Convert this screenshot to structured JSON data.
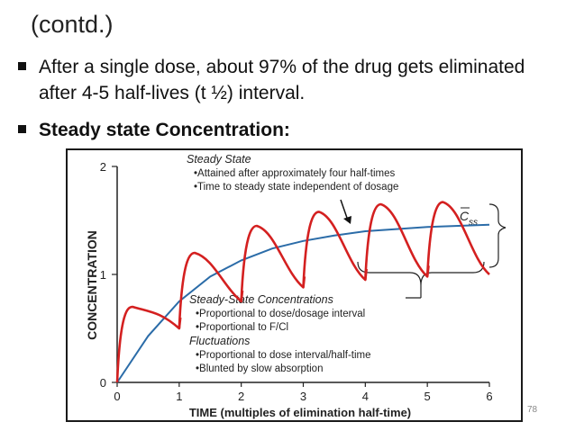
{
  "slide": {
    "heading": "(contd.)",
    "bullets": [
      {
        "text": "After a single dose, about 97% of the drug gets eliminated after 4-5 half-lives (t ½) interval.",
        "bold": false
      },
      {
        "text": "Steady state Concentration:",
        "bold": true
      }
    ],
    "page_number": "78"
  },
  "chart_data": {
    "type": "line",
    "xlabel": "TIME (multiples of elimination half-time)",
    "ylabel": "CONCENTRATION",
    "x_ticks": [
      "0",
      "1",
      "2",
      "3",
      "4",
      "5",
      "6"
    ],
    "y_ticks": [
      "0",
      "1",
      "2"
    ],
    "xlim": [
      0,
      6
    ],
    "ylim": [
      0,
      2
    ],
    "grid": false,
    "series": [
      {
        "color": "#d42020",
        "dose_interval": 1,
        "description_points": [
          {
            "x": 0.0,
            "y": 0.0
          },
          {
            "x": 0.25,
            "y": 0.7
          },
          {
            "x": 1.0,
            "y": 0.5
          },
          {
            "x": 1.25,
            "y": 1.2
          },
          {
            "x": 2.0,
            "y": 0.75
          },
          {
            "x": 2.25,
            "y": 1.45
          },
          {
            "x": 3.0,
            "y": 0.88
          },
          {
            "x": 3.25,
            "y": 1.58
          },
          {
            "x": 4.0,
            "y": 0.95
          },
          {
            "x": 4.25,
            "y": 1.65
          },
          {
            "x": 5.0,
            "y": 0.98
          },
          {
            "x": 5.25,
            "y": 1.67
          },
          {
            "x": 6.0,
            "y": 1.0
          }
        ]
      },
      {
        "color": "#2b6ca8",
        "points": [
          {
            "x": 0,
            "y": 0
          },
          {
            "x": 0.5,
            "y": 0.43
          },
          {
            "x": 1,
            "y": 0.75
          },
          {
            "x": 1.5,
            "y": 0.98
          },
          {
            "x": 2,
            "y": 1.13
          },
          {
            "x": 2.5,
            "y": 1.24
          },
          {
            "x": 3,
            "y": 1.31
          },
          {
            "x": 3.5,
            "y": 1.36
          },
          {
            "x": 4,
            "y": 1.4
          },
          {
            "x": 4.5,
            "y": 1.42
          },
          {
            "x": 5,
            "y": 1.44
          },
          {
            "x": 5.5,
            "y": 1.45
          },
          {
            "x": 6,
            "y": 1.46
          }
        ]
      }
    ],
    "css_label": "C",
    "css_subscript": "ss",
    "annotations": {
      "steady_state_title": "Steady State",
      "steady_state_lines": [
        "•Attained after approximately four half-times",
        "•Time to steady state independent of dosage"
      ],
      "ss_conc_title": "Steady-State Concentrations",
      "ss_conc_lines": [
        "•Proportional to dose/dosage interval",
        "•Proportional to F/Cl"
      ],
      "fluct_title": "Fluctuations",
      "fluct_lines": [
        "•Proportional to dose interval/half-time",
        "•Blunted by slow absorption"
      ]
    }
  }
}
